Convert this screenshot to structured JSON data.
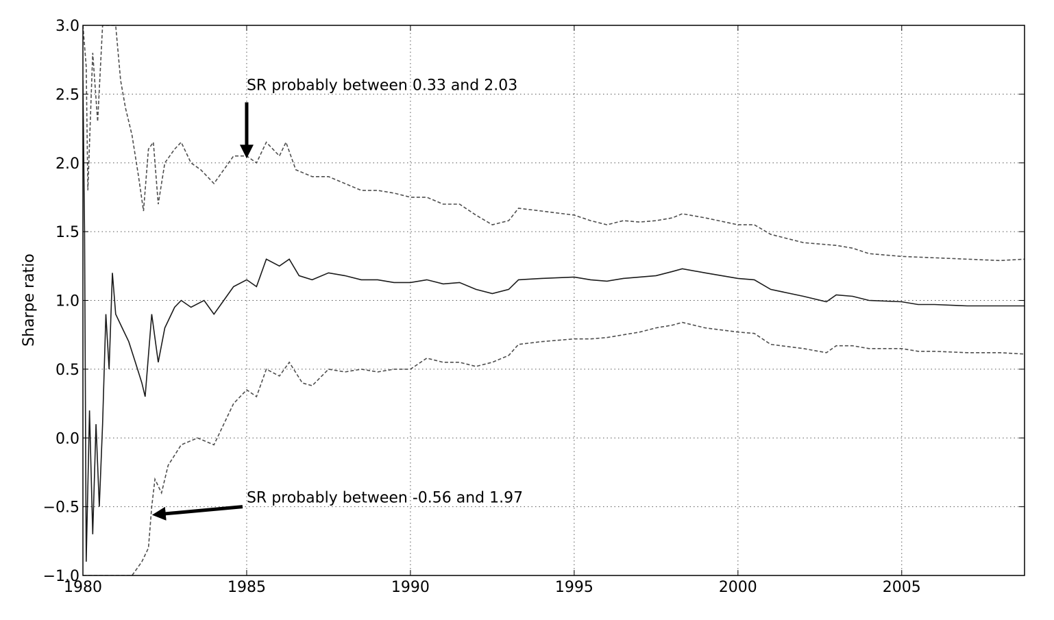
{
  "chart_data": {
    "type": "line",
    "title": "",
    "xlabel": "",
    "ylabel": "Sharpe ratio",
    "xlim": [
      1980,
      2008.75
    ],
    "ylim": [
      -1.0,
      3.0
    ],
    "grid": true,
    "x_ticks": [
      1980,
      1985,
      1990,
      1995,
      2000,
      2005
    ],
    "x_tick_labels": [
      "1980",
      "1985",
      "1990",
      "1995",
      "2000",
      "2005"
    ],
    "y_ticks": [
      -1.0,
      -0.5,
      0.0,
      0.5,
      1.0,
      1.5,
      2.0,
      2.5,
      3.0
    ],
    "y_tick_labels": [
      "−1.0",
      "−0.5",
      "0.0",
      "0.5",
      "1.0",
      "1.5",
      "2.0",
      "2.5",
      "3.0"
    ],
    "series": [
      {
        "style": "dashed",
        "color": "#4d4d4d",
        "points": [
          [
            1980.0,
            3.0
          ],
          [
            1980.1,
            2.7
          ],
          [
            1980.15,
            1.8
          ],
          [
            1980.3,
            2.8
          ],
          [
            1980.45,
            2.3
          ],
          [
            1980.6,
            3.0
          ],
          [
            1981.0,
            3.0
          ],
          [
            1981.15,
            2.6
          ],
          [
            1981.3,
            2.4
          ],
          [
            1981.5,
            2.2
          ],
          [
            1981.7,
            1.9
          ],
          [
            1981.85,
            1.65
          ],
          [
            1982.0,
            2.1
          ],
          [
            1982.15,
            2.15
          ],
          [
            1982.3,
            1.7
          ],
          [
            1982.5,
            2.0
          ],
          [
            1982.8,
            2.1
          ],
          [
            1983.0,
            2.15
          ],
          [
            1983.3,
            2.0
          ],
          [
            1983.6,
            1.95
          ],
          [
            1984.0,
            1.85
          ],
          [
            1984.3,
            1.95
          ],
          [
            1984.6,
            2.05
          ],
          [
            1985.0,
            2.05
          ],
          [
            1985.3,
            2.0
          ],
          [
            1985.6,
            2.15
          ],
          [
            1986.0,
            2.05
          ],
          [
            1986.2,
            2.15
          ],
          [
            1986.5,
            1.95
          ],
          [
            1987.0,
            1.9
          ],
          [
            1987.5,
            1.9
          ],
          [
            1988.0,
            1.85
          ],
          [
            1988.5,
            1.8
          ],
          [
            1989.0,
            1.8
          ],
          [
            1989.5,
            1.78
          ],
          [
            1990.0,
            1.75
          ],
          [
            1990.5,
            1.75
          ],
          [
            1991.0,
            1.7
          ],
          [
            1991.5,
            1.7
          ],
          [
            1992.0,
            1.62
          ],
          [
            1992.5,
            1.55
          ],
          [
            1993.0,
            1.58
          ],
          [
            1993.3,
            1.67
          ],
          [
            1994.0,
            1.65
          ],
          [
            1995.0,
            1.62
          ],
          [
            1995.5,
            1.58
          ],
          [
            1996.0,
            1.55
          ],
          [
            1996.5,
            1.58
          ],
          [
            1997.0,
            1.57
          ],
          [
            1997.5,
            1.58
          ],
          [
            1998.0,
            1.6
          ],
          [
            1998.3,
            1.63
          ],
          [
            1999.0,
            1.6
          ],
          [
            2000.0,
            1.55
          ],
          [
            2000.5,
            1.55
          ],
          [
            2001.0,
            1.48
          ],
          [
            2002.0,
            1.42
          ],
          [
            2003.0,
            1.4
          ],
          [
            2003.5,
            1.38
          ],
          [
            2004.0,
            1.34
          ],
          [
            2005.0,
            1.32
          ],
          [
            2006.0,
            1.31
          ],
          [
            2007.0,
            1.3
          ],
          [
            2008.0,
            1.29
          ],
          [
            2008.75,
            1.3
          ]
        ]
      },
      {
        "style": "solid",
        "color": "#1a1a1a",
        "points": [
          [
            1980.0,
            2.6
          ],
          [
            1980.05,
            1.5
          ],
          [
            1980.1,
            -0.9
          ],
          [
            1980.2,
            0.2
          ],
          [
            1980.3,
            -0.7
          ],
          [
            1980.4,
            0.1
          ],
          [
            1980.5,
            -0.5
          ],
          [
            1980.6,
            0.1
          ],
          [
            1980.7,
            0.9
          ],
          [
            1980.8,
            0.5
          ],
          [
            1980.9,
            1.2
          ],
          [
            1981.0,
            0.9
          ],
          [
            1981.2,
            0.8
          ],
          [
            1981.4,
            0.7
          ],
          [
            1981.6,
            0.55
          ],
          [
            1981.8,
            0.4
          ],
          [
            1981.9,
            0.3
          ],
          [
            1982.1,
            0.9
          ],
          [
            1982.3,
            0.55
          ],
          [
            1982.5,
            0.8
          ],
          [
            1982.8,
            0.95
          ],
          [
            1983.0,
            1.0
          ],
          [
            1983.3,
            0.95
          ],
          [
            1983.7,
            1.0
          ],
          [
            1984.0,
            0.9
          ],
          [
            1984.3,
            1.0
          ],
          [
            1984.6,
            1.1
          ],
          [
            1985.0,
            1.15
          ],
          [
            1985.3,
            1.1
          ],
          [
            1985.6,
            1.3
          ],
          [
            1986.0,
            1.25
          ],
          [
            1986.3,
            1.3
          ],
          [
            1986.6,
            1.18
          ],
          [
            1987.0,
            1.15
          ],
          [
            1987.5,
            1.2
          ],
          [
            1988.0,
            1.18
          ],
          [
            1988.5,
            1.15
          ],
          [
            1989.0,
            1.15
          ],
          [
            1989.5,
            1.13
          ],
          [
            1990.0,
            1.13
          ],
          [
            1990.5,
            1.15
          ],
          [
            1991.0,
            1.12
          ],
          [
            1991.5,
            1.13
          ],
          [
            1992.0,
            1.08
          ],
          [
            1992.5,
            1.05
          ],
          [
            1993.0,
            1.08
          ],
          [
            1993.3,
            1.15
          ],
          [
            1994.0,
            1.16
          ],
          [
            1995.0,
            1.17
          ],
          [
            1995.5,
            1.15
          ],
          [
            1996.0,
            1.14
          ],
          [
            1996.5,
            1.16
          ],
          [
            1997.0,
            1.17
          ],
          [
            1997.5,
            1.18
          ],
          [
            1998.0,
            1.21
          ],
          [
            1998.3,
            1.23
          ],
          [
            1999.0,
            1.2
          ],
          [
            2000.0,
            1.16
          ],
          [
            2000.5,
            1.15
          ],
          [
            2001.0,
            1.08
          ],
          [
            2002.0,
            1.03
          ],
          [
            2002.7,
            0.99
          ],
          [
            2003.0,
            1.04
          ],
          [
            2003.5,
            1.03
          ],
          [
            2004.0,
            1.0
          ],
          [
            2005.0,
            0.99
          ],
          [
            2005.5,
            0.97
          ],
          [
            2006.0,
            0.97
          ],
          [
            2007.0,
            0.96
          ],
          [
            2008.0,
            0.96
          ],
          [
            2008.75,
            0.96
          ]
        ]
      },
      {
        "style": "dashed",
        "color": "#4d4d4d",
        "points": [
          [
            1980.0,
            -1.0
          ],
          [
            1981.5,
            -1.0
          ],
          [
            1981.8,
            -0.9
          ],
          [
            1982.0,
            -0.8
          ],
          [
            1982.1,
            -0.5
          ],
          [
            1982.2,
            -0.3
          ],
          [
            1982.4,
            -0.4
          ],
          [
            1982.6,
            -0.2
          ],
          [
            1983.0,
            -0.05
          ],
          [
            1983.5,
            0.0
          ],
          [
            1984.0,
            -0.05
          ],
          [
            1984.3,
            0.1
          ],
          [
            1984.6,
            0.25
          ],
          [
            1985.0,
            0.35
          ],
          [
            1985.3,
            0.3
          ],
          [
            1985.6,
            0.5
          ],
          [
            1986.0,
            0.45
          ],
          [
            1986.3,
            0.55
          ],
          [
            1986.7,
            0.4
          ],
          [
            1987.0,
            0.38
          ],
          [
            1987.5,
            0.5
          ],
          [
            1988.0,
            0.48
          ],
          [
            1988.5,
            0.5
          ],
          [
            1989.0,
            0.48
          ],
          [
            1989.5,
            0.5
          ],
          [
            1990.0,
            0.5
          ],
          [
            1990.5,
            0.58
          ],
          [
            1991.0,
            0.55
          ],
          [
            1991.5,
            0.55
          ],
          [
            1992.0,
            0.52
          ],
          [
            1992.5,
            0.55
          ],
          [
            1993.0,
            0.6
          ],
          [
            1993.3,
            0.68
          ],
          [
            1994.0,
            0.7
          ],
          [
            1995.0,
            0.72
          ],
          [
            1995.5,
            0.72
          ],
          [
            1996.0,
            0.73
          ],
          [
            1996.5,
            0.75
          ],
          [
            1997.0,
            0.77
          ],
          [
            1997.5,
            0.8
          ],
          [
            1998.0,
            0.82
          ],
          [
            1998.3,
            0.84
          ],
          [
            1999.0,
            0.8
          ],
          [
            2000.0,
            0.77
          ],
          [
            2000.5,
            0.76
          ],
          [
            2001.0,
            0.68
          ],
          [
            2002.0,
            0.65
          ],
          [
            2002.7,
            0.62
          ],
          [
            2003.0,
            0.67
          ],
          [
            2003.5,
            0.67
          ],
          [
            2004.0,
            0.65
          ],
          [
            2005.0,
            0.65
          ],
          [
            2005.5,
            0.63
          ],
          [
            2006.0,
            0.63
          ],
          [
            2007.0,
            0.62
          ],
          [
            2008.0,
            0.62
          ],
          [
            2008.75,
            0.61
          ]
        ]
      }
    ],
    "annotations": [
      {
        "text": "SR probably between 0.33 and 2.03",
        "x": 1985.0,
        "y": 2.53,
        "arrow_to": [
          1985.0,
          2.03
        ]
      },
      {
        "text": "SR probably between -0.56 and 1.97",
        "x": 1985.0,
        "y": -0.47,
        "arrow_to": [
          1982.1,
          -0.56
        ]
      }
    ]
  }
}
